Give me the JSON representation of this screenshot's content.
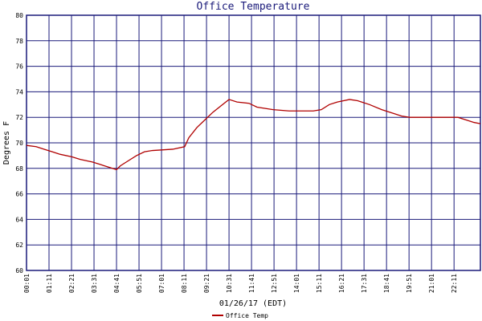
{
  "chart_data": {
    "type": "line",
    "title": "Office Temperature",
    "x_label": "01/26/17 (EDT)",
    "y_label": "Degrees F",
    "xlim": [
      1,
      1413
    ],
    "ylim": [
      60,
      80
    ],
    "xticks": [
      {
        "value": 1,
        "label": "00:01"
      },
      {
        "value": 71,
        "label": "01:11"
      },
      {
        "value": 141,
        "label": "02:21"
      },
      {
        "value": 211,
        "label": "03:31"
      },
      {
        "value": 281,
        "label": "04:41"
      },
      {
        "value": 351,
        "label": "05:51"
      },
      {
        "value": 421,
        "label": "07:01"
      },
      {
        "value": 491,
        "label": "08:11"
      },
      {
        "value": 561,
        "label": "09:21"
      },
      {
        "value": 631,
        "label": "10:31"
      },
      {
        "value": 701,
        "label": "11:41"
      },
      {
        "value": 771,
        "label": "12:51"
      },
      {
        "value": 841,
        "label": "14:01"
      },
      {
        "value": 911,
        "label": "15:11"
      },
      {
        "value": 981,
        "label": "16:21"
      },
      {
        "value": 1051,
        "label": "17:31"
      },
      {
        "value": 1121,
        "label": "18:41"
      },
      {
        "value": 1191,
        "label": "19:51"
      },
      {
        "value": 1261,
        "label": "21:01"
      },
      {
        "value": 1331,
        "label": "22:11"
      }
    ],
    "yticks": [
      60,
      62,
      64,
      66,
      68,
      70,
      72,
      74,
      76,
      78,
      80
    ],
    "grid": true,
    "x": [
      1,
      31,
      56,
      81,
      106,
      143,
      168,
      206,
      231,
      256,
      281,
      293,
      318,
      343,
      368,
      393,
      456,
      493,
      506,
      531,
      556,
      581,
      606,
      631,
      656,
      693,
      718,
      768,
      818,
      893,
      918,
      943,
      968,
      1006,
      1031,
      1068,
      1106,
      1143,
      1168,
      1193,
      1268,
      1343,
      1368,
      1393,
      1413
    ],
    "series": [
      {
        "name": "Office Temp",
        "color": "#b00000",
        "values": [
          69.8,
          69.7,
          69.5,
          69.3,
          69.1,
          68.9,
          68.7,
          68.5,
          68.3,
          68.1,
          67.9,
          68.2,
          68.6,
          69.0,
          69.3,
          69.4,
          69.5,
          69.7,
          70.4,
          71.2,
          71.8,
          72.4,
          72.9,
          73.4,
          73.2,
          73.1,
          72.8,
          72.6,
          72.5,
          72.5,
          72.6,
          73.0,
          73.2,
          73.4,
          73.3,
          73.0,
          72.6,
          72.3,
          72.1,
          72.0,
          72.0,
          72.0,
          71.8,
          71.6,
          71.5
        ]
      }
    ]
  }
}
